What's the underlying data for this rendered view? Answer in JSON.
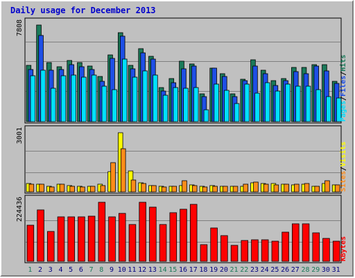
{
  "chart_data": {
    "title": "Daily usage for December 2013",
    "type": "bar",
    "days": [
      "1",
      "2",
      "3",
      "4",
      "5",
      "6",
      "7",
      "8",
      "9",
      "10",
      "11",
      "12",
      "13",
      "14",
      "15",
      "16",
      "17",
      "18",
      "19",
      "20",
      "21",
      "22",
      "23",
      "24",
      "25",
      "26",
      "27",
      "28",
      "29",
      "30",
      "31"
    ],
    "weekend_days": [
      "1",
      "7",
      "8",
      "14",
      "15",
      "21",
      "22",
      "28",
      "29"
    ],
    "panels": [
      {
        "id": "top",
        "max_label": "7808",
        "ymax": 7808,
        "legend": [
          "Pages",
          "Files",
          "Hits"
        ],
        "series": [
          {
            "name": "Hits",
            "color": "#1b7a5a",
            "values": [
              4540,
              7808,
              4760,
              4430,
              4970,
              4750,
              4520,
              3630,
              5420,
              7200,
              4540,
              5890,
              5300,
              2760,
              3460,
              4860,
              4690,
              2270,
              4350,
              3870,
              2220,
              3450,
              4980,
              4130,
              3310,
              3480,
              4380,
              4380,
              4630,
              4600,
              3240
            ]
          },
          {
            "name": "Files",
            "color": "#1e4fe6",
            "values": [
              4190,
              6970,
              4140,
              4200,
              4600,
              4430,
              4200,
              3270,
              5100,
              6920,
              4290,
              5560,
              5030,
              2460,
              3140,
              4290,
              4480,
              2050,
              4350,
              3660,
              2000,
              3340,
              4480,
              3890,
              2930,
              3290,
              4070,
              3880,
              4520,
              4100,
              3100
            ]
          },
          {
            "name": "Pages",
            "color": "#00e0ff",
            "values": [
              3700,
              4180,
              2710,
              3720,
              3780,
              3610,
              3740,
              2860,
              2610,
              5040,
              3580,
              4120,
              3770,
              2140,
              2760,
              2720,
              2760,
              930,
              3050,
              2510,
              1450,
              3030,
              2280,
              3160,
              2470,
              3060,
              2850,
              2840,
              2580,
              2020,
              1930
            ]
          }
        ],
        "legend_colors": [
          "#00e0ff",
          "#1e4fe6",
          "#1b7a5a"
        ]
      },
      {
        "id": "middle",
        "max_label": "3001",
        "ymax": 3001,
        "legend": [
          "Sites",
          "Visits"
        ],
        "series": [
          {
            "name": "Visits",
            "color": "#ffff00",
            "values": [
              410,
              390,
              290,
              390,
              330,
              270,
              290,
              390,
              1030,
              3001,
              1050,
              470,
              330,
              270,
              290,
              330,
              360,
              280,
              310,
              300,
              280,
              300,
              450,
              420,
              420,
              390,
              370,
              400,
              300,
              440,
              350
            ]
          },
          {
            "name": "Sites",
            "color": "#ff8c1a",
            "values": [
              390,
              390,
              250,
              390,
              300,
              250,
              270,
              330,
              1500,
              2200,
              590,
              440,
              310,
              250,
              300,
              550,
              310,
              250,
              300,
              290,
              270,
              400,
              480,
              390,
              360,
              400,
              380,
              420,
              300,
              550,
              340
            ]
          }
        ],
        "legend_colors": [
          "#ff8c1a",
          "#ffff00"
        ]
      },
      {
        "id": "bottom",
        "max_label": "224436",
        "ymax": 224436,
        "legend": [
          "KBytes"
        ],
        "series": [
          {
            "name": "KBytes",
            "color": "#ff0000",
            "values": [
              137000,
              196000,
              113000,
              170000,
              168000,
              168000,
              171000,
              224436,
              170000,
              183000,
              140000,
              224436,
              207000,
              140000,
              186000,
              198000,
              216000,
              64000,
              127000,
              97000,
              62000,
              78000,
              81000,
              81000,
              76000,
              112000,
              142000,
              142000,
              108000,
              86000,
              76000
            ]
          }
        ],
        "legend_colors": [
          "#ff0000"
        ]
      }
    ]
  }
}
